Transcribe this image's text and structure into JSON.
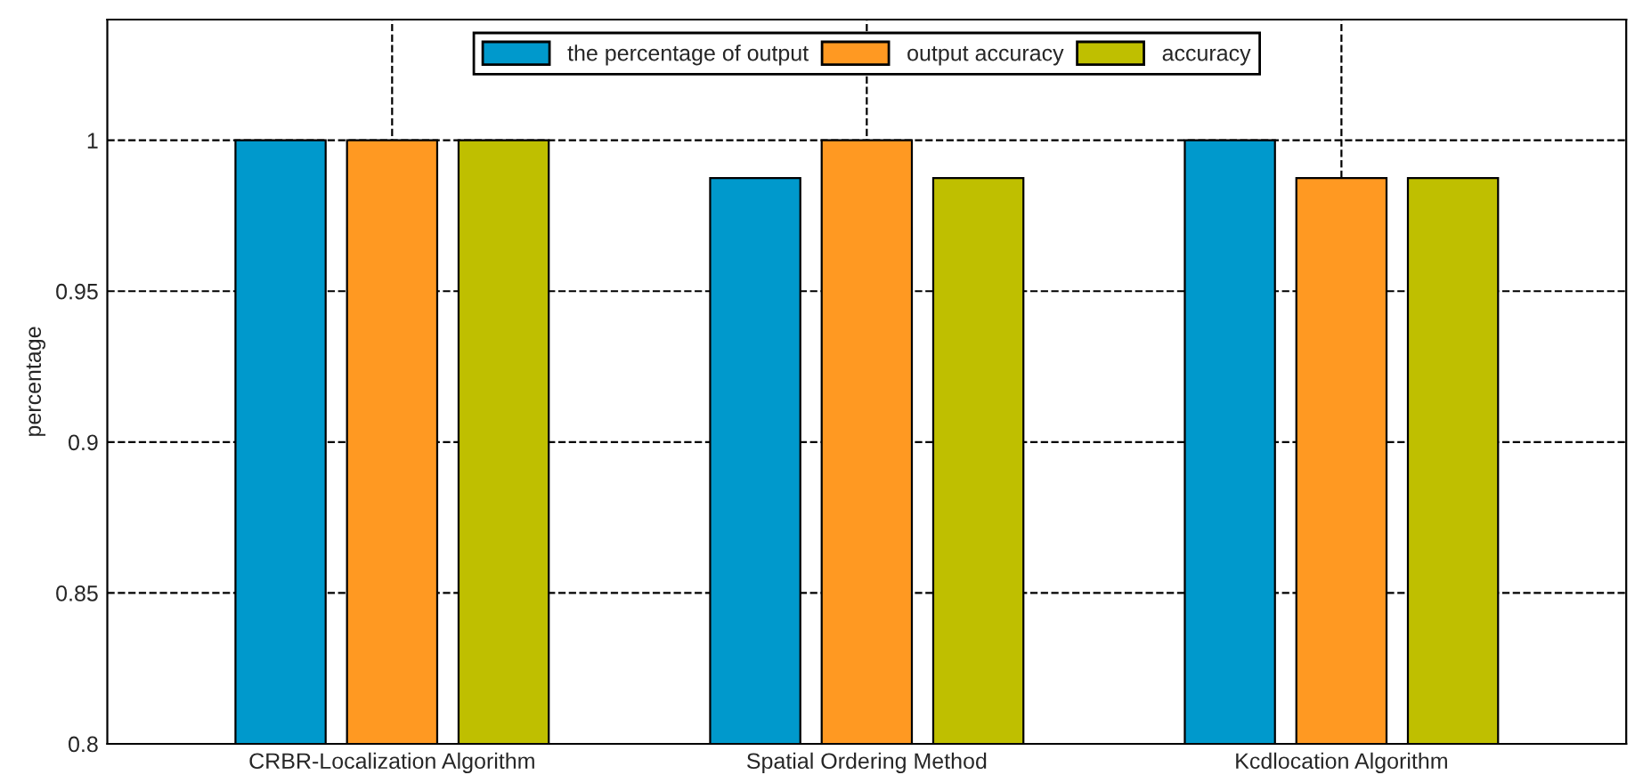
{
  "chart_data": {
    "type": "bar",
    "ylabel": "percentage",
    "categories": [
      "CRBR-Localization Algorithm",
      "Spatial Ordering Method",
      "Kcdlocation Algorithm"
    ],
    "series": [
      {
        "name": "the percentage of output",
        "color": "#0099cc",
        "values": [
          1,
          0.9875,
          1
        ]
      },
      {
        "name": "output accuracy",
        "color": "#ff9922",
        "values": [
          1,
          1,
          0.9875
        ]
      },
      {
        "name": "accuracy",
        "color": "#bfbf00",
        "values": [
          1,
          0.9875,
          0.9875
        ]
      }
    ],
    "ylim": [
      0.8,
      1.04
    ],
    "yticks": [
      0.8,
      0.85,
      0.9,
      0.95,
      1
    ],
    "grid": true,
    "legend": "top",
    "line_style": "dashed"
  }
}
